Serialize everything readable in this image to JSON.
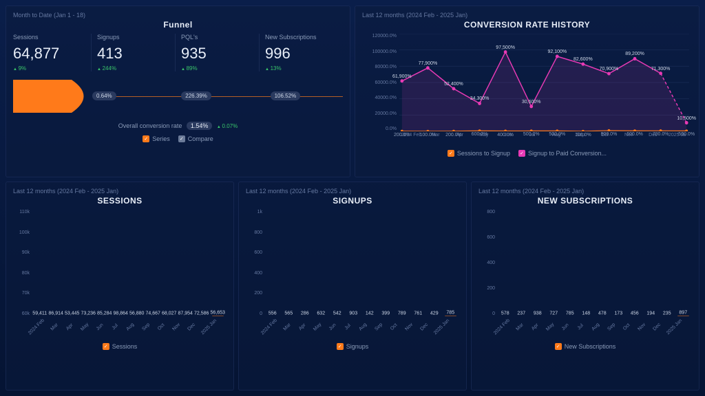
{
  "colors": {
    "orange": "#ff7a1a",
    "magenta": "#e83ab5",
    "gray_check": "#6b7b99",
    "green": "#39c46a",
    "bg_panel": "rgba(10,25,60,0.5)"
  },
  "funnel": {
    "subtitle": "Month to Date (Jan 1 - 18)",
    "title": "Funnel",
    "metrics": [
      {
        "label": "Sessions",
        "value": "64,877",
        "delta": "9%"
      },
      {
        "label": "Signups",
        "value": "413",
        "delta": "244%"
      },
      {
        "label": "PQL's",
        "value": "935",
        "delta": "89%"
      },
      {
        "label": "New Subscriptions",
        "value": "996",
        "delta": "13%"
      }
    ],
    "stage_conversions": [
      {
        "label": "0.64%",
        "left_pct": 24
      },
      {
        "label": "226.39%",
        "left_pct": 51
      },
      {
        "label": "106.52%",
        "left_pct": 78
      }
    ],
    "overall_label": "Overall conversion rate",
    "overall_rate": "1.54%",
    "overall_delta": "0.07%",
    "legend": [
      {
        "label": "Series",
        "color": "#ff7a1a"
      },
      {
        "label": "Compare",
        "color": "#6b7b99"
      }
    ]
  },
  "conversion_history": {
    "subtitle": "Last 12 months (2024 Feb - 2025 Jan)",
    "title": "CONVERSION RATE HISTORY",
    "y_ticks": [
      "120000.0%",
      "100000.0%",
      "80000.0%",
      "60000.0%",
      "40000.0%",
      "20000.0%",
      "0.0%"
    ],
    "y_max": 120000,
    "x_labels": [
      "2024 Feb",
      "Mar",
      "Apr",
      "May",
      "Jun",
      "Jul",
      "Aug",
      "Sep",
      "Oct",
      "Nov",
      "Dec",
      "2025 Ja"
    ],
    "signup_to_paid": {
      "color": "#e83ab5",
      "values": [
        61900,
        77900,
        52400,
        34300,
        97500,
        30600,
        92100,
        82600,
        70900,
        89200,
        71300,
        10500
      ],
      "labels": [
        "61,900%",
        "77,900%",
        "52,400%",
        "34,300%",
        "97,500%",
        "30,600%",
        "92,100%",
        "82,600%",
        "70,900%",
        "89,200%",
        "71,300%",
        "10,500%"
      ],
      "last_dashed": true
    },
    "sessions_to_signup": {
      "color": "#ff7a1a",
      "values": [
        200,
        100,
        200,
        600,
        400,
        500,
        500,
        100,
        900,
        600,
        700,
        500
      ],
      "labels": [
        "200.0%",
        "100.0%",
        "200.0%",
        "600.0%",
        "400.0%",
        "500.0%",
        "500.0%",
        "100.0%",
        "900.0%",
        "600.0%",
        "700.0%",
        "500.0%"
      ]
    },
    "legend": [
      {
        "label": "Sessions to Signup",
        "color": "#ff7a1a"
      },
      {
        "label": "Signup to Paid Conversion...",
        "color": "#e83ab5"
      }
    ]
  },
  "bar_subtitle": "Last 12 months (2024 Feb - 2025 Jan)",
  "bar_x": [
    "2024 Feb",
    "Mar",
    "Apr",
    "May",
    "Jun",
    "Jul",
    "Aug",
    "Sep",
    "Oct",
    "Nov",
    "Dec",
    "2025 Jan"
  ],
  "sessions_chart": {
    "title": "SESSIONS",
    "y_ticks": [
      "110k",
      "100k",
      "90k",
      "80k",
      "70k",
      "60k"
    ],
    "y_min": 50000,
    "y_max": 115000,
    "values": [
      59411,
      86914,
      53445,
      73236,
      85284,
      98864,
      56880,
      74667,
      68027,
      87954,
      72586,
      56653
    ],
    "labels": [
      "59,411",
      "86,914",
      "53,445",
      "73,236",
      "85,284",
      "98,864",
      "56,880",
      "74,667",
      "68,027",
      "87,954",
      "72,586",
      "56,653"
    ],
    "legend": "Sessions"
  },
  "signups_chart": {
    "title": "SIGNUPS",
    "y_ticks": [
      "1k",
      "800",
      "600",
      "400",
      "200",
      "0"
    ],
    "y_min": 0,
    "y_max": 1000,
    "values": [
      556,
      565,
      286,
      632,
      542,
      903,
      142,
      399,
      789,
      761,
      429,
      785
    ],
    "labels": [
      "556",
      "565",
      "286",
      "632",
      "542",
      "903",
      "142",
      "399",
      "789",
      "761",
      "429",
      "785"
    ],
    "legend": "Signups"
  },
  "newsubs_chart": {
    "title": "NEW SUBSCRIPTIONS",
    "y_ticks": [
      "800",
      "600",
      "400",
      "200",
      "0"
    ],
    "y_min": 0,
    "y_max": 1000,
    "values": [
      578,
      237,
      938,
      727,
      785,
      148,
      478,
      173,
      456,
      194,
      235,
      897
    ],
    "labels": [
      "578",
      "237",
      "938",
      "727",
      "785",
      "148",
      "478",
      "173",
      "456",
      "194",
      "235",
      "897"
    ],
    "legend": "New Subscriptions"
  }
}
